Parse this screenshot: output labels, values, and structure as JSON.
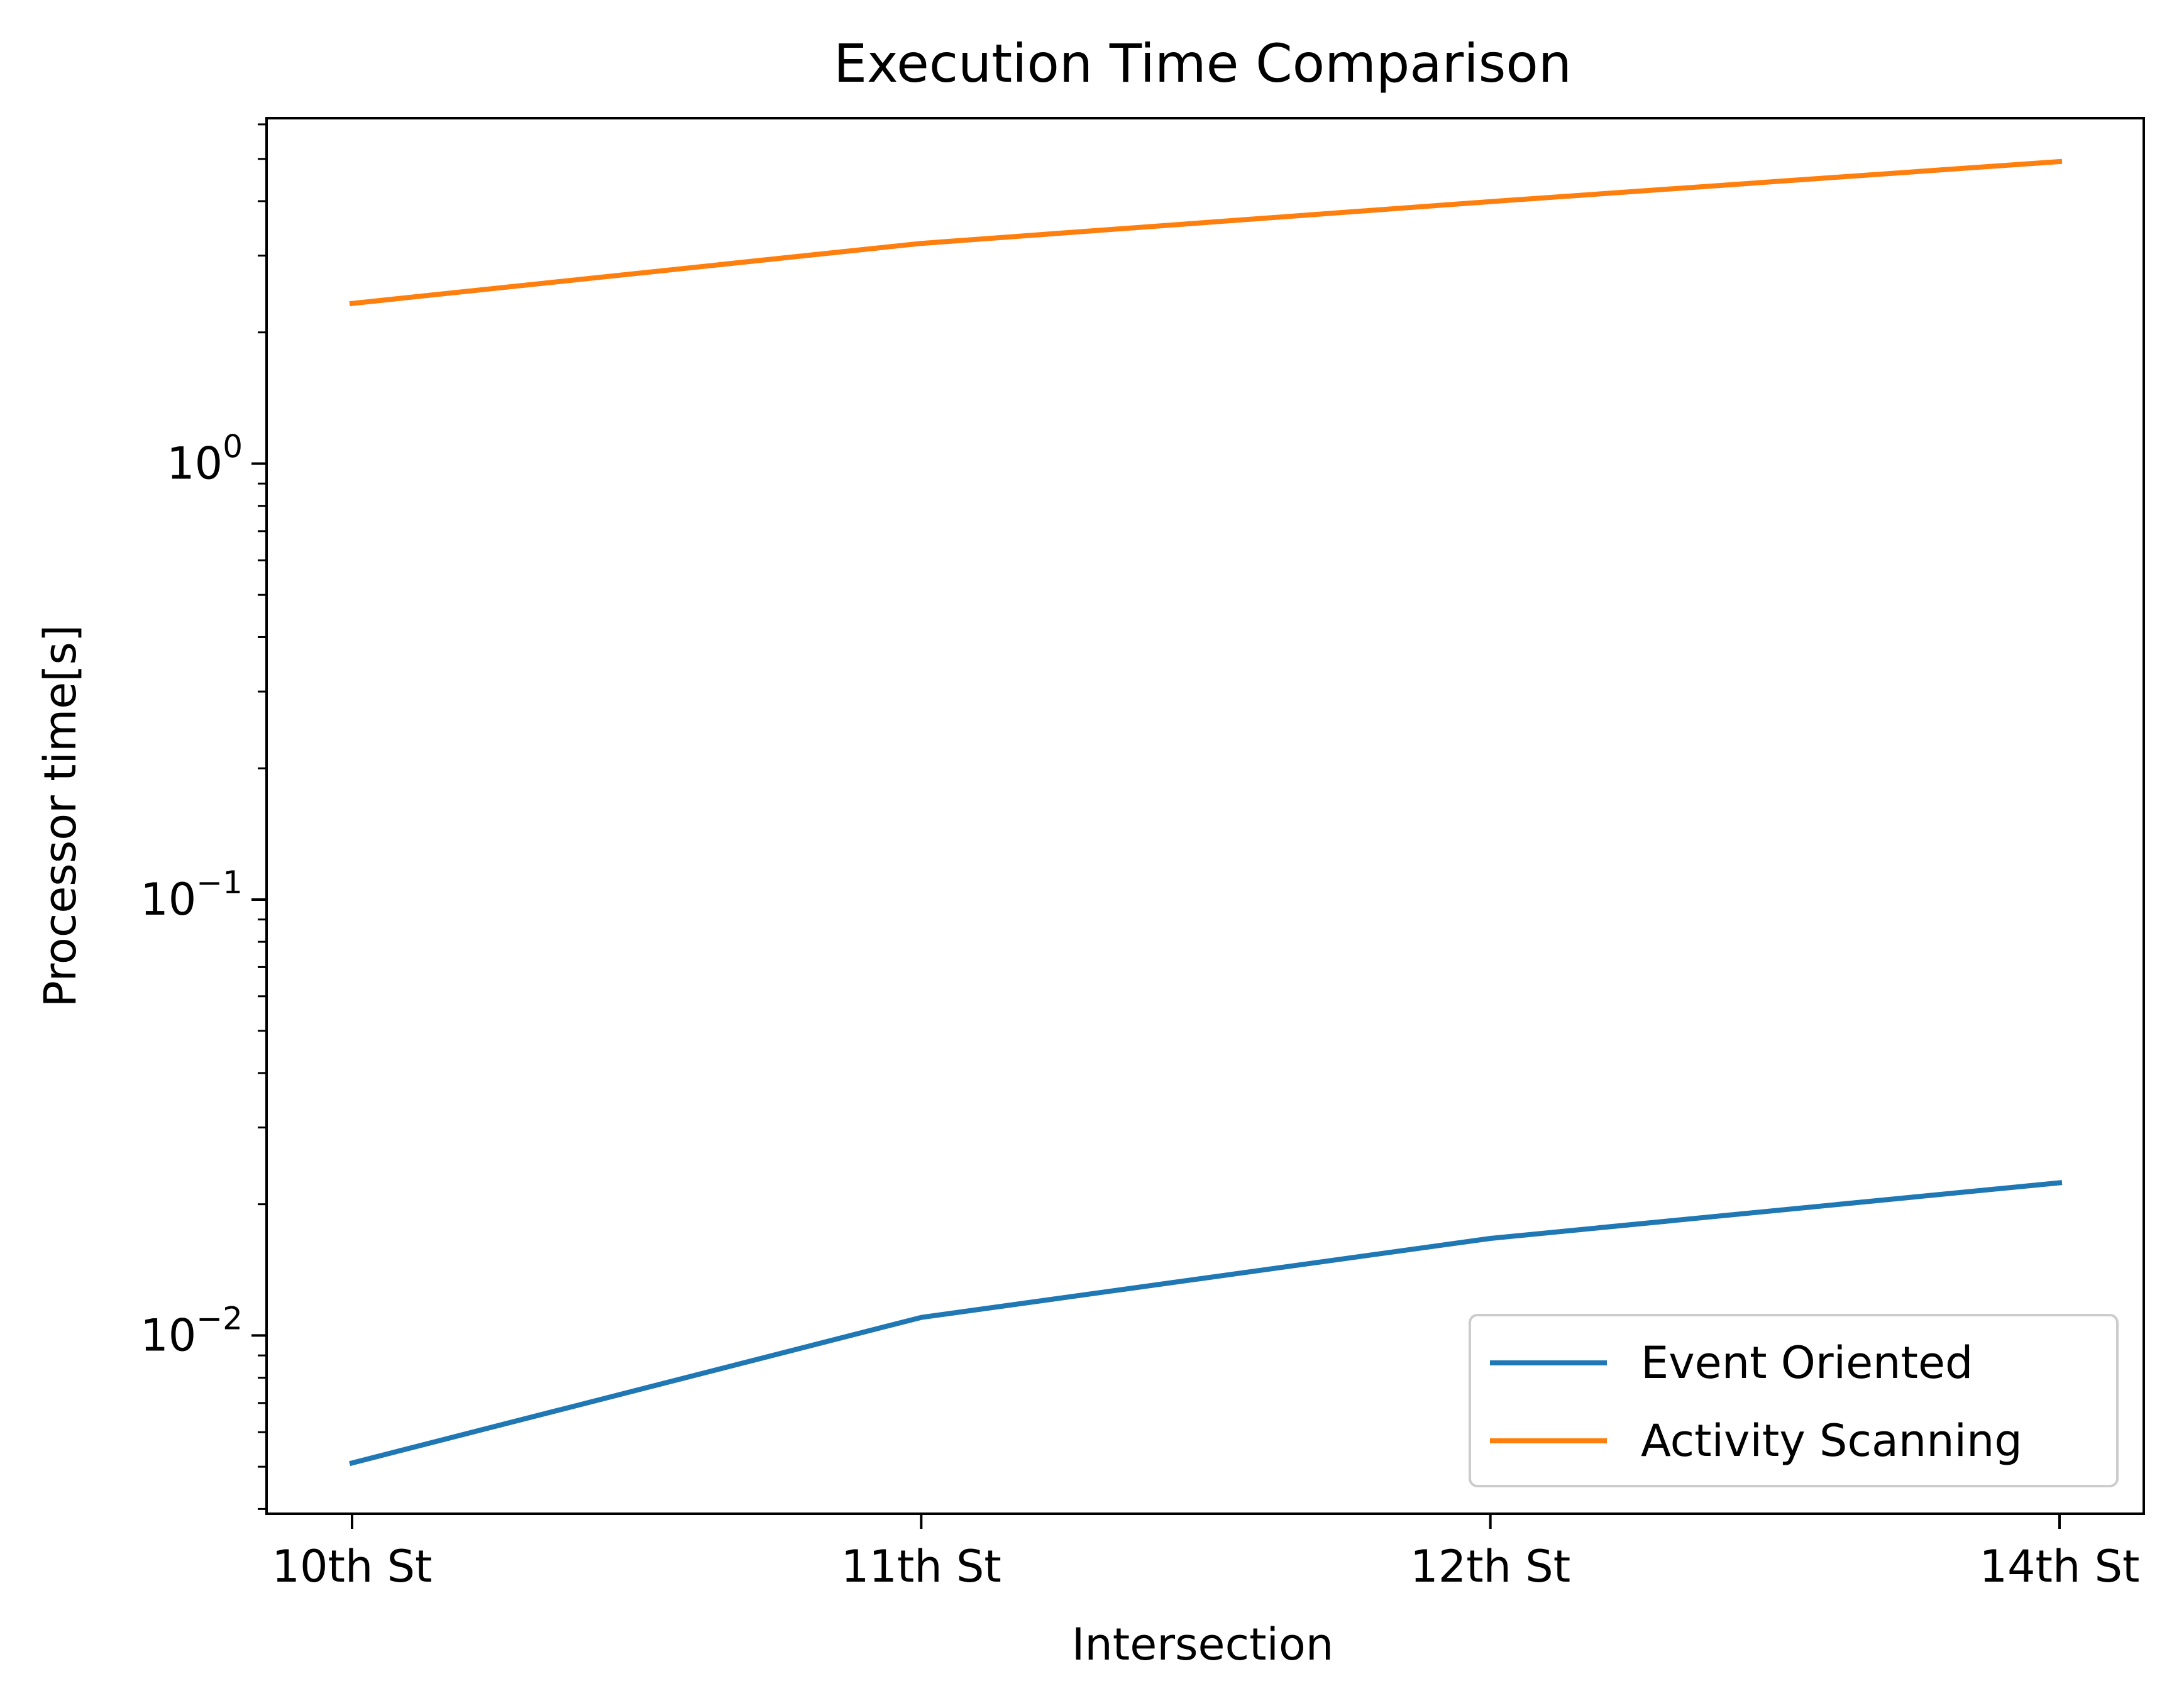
{
  "chart_data": {
    "type": "line",
    "title": "Execution Time Comparison",
    "xlabel": "Intersection",
    "ylabel": "Processor time[s]",
    "categories": [
      "10th St",
      "11th St",
      "12th St",
      "14th St"
    ],
    "yscale": "log",
    "ylim": [
      0.0039,
      6.2
    ],
    "yticks": [
      {
        "value": 0.01,
        "base": "10",
        "exp": "−2"
      },
      {
        "value": 0.1,
        "base": "10",
        "exp": "−1"
      },
      {
        "value": 1,
        "base": "10",
        "exp": "0"
      }
    ],
    "grid": false,
    "legend_position": "lower-right",
    "series": [
      {
        "name": "Event Oriented",
        "color": "#1f77b4",
        "values": [
          0.0051,
          0.011,
          0.0167,
          0.0224
        ]
      },
      {
        "name": "Activity Scanning",
        "color": "#ff7f0e",
        "values": [
          2.33,
          3.2,
          3.99,
          4.93
        ]
      }
    ]
  }
}
